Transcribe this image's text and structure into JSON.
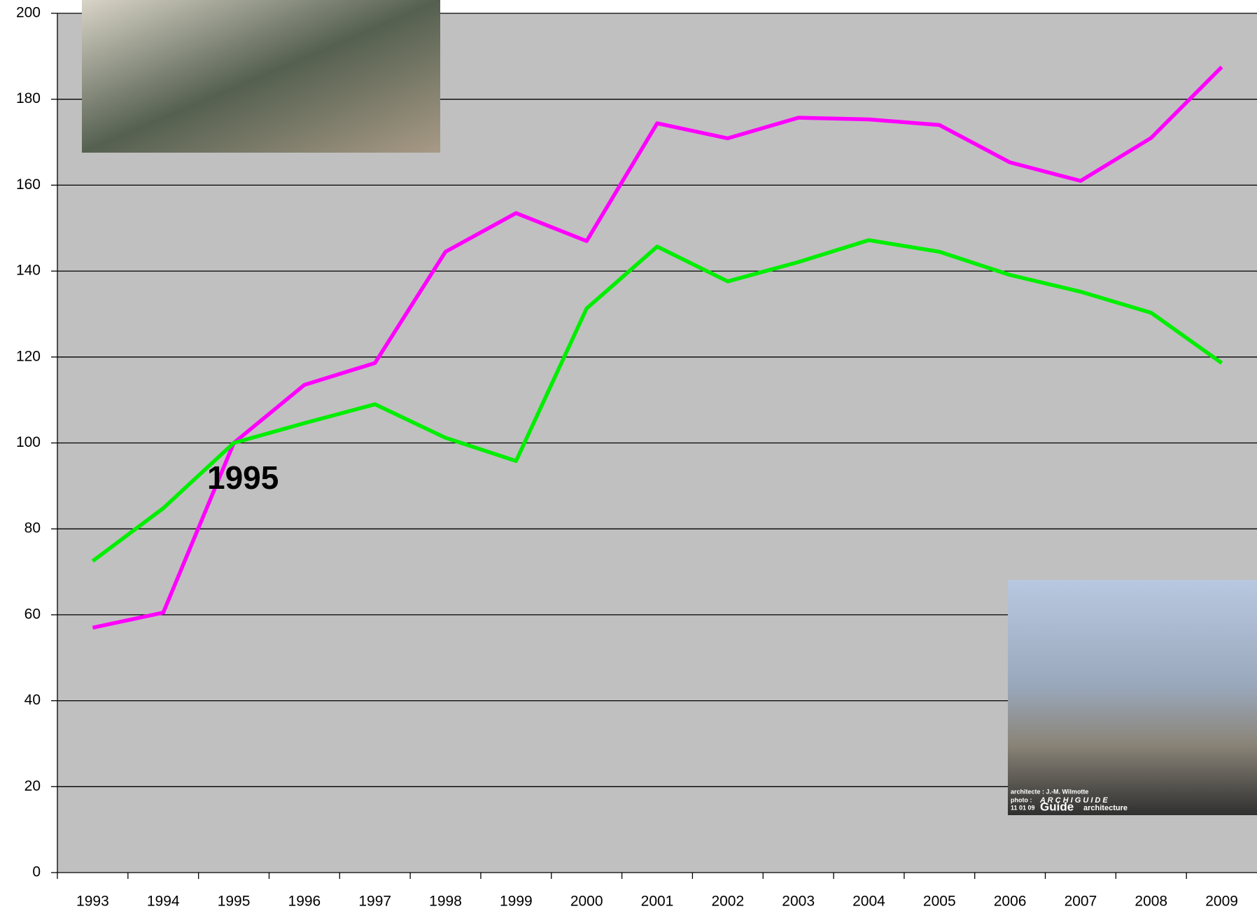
{
  "chart_data": {
    "type": "line",
    "categories": [
      "1993",
      "1994",
      "1995",
      "1996",
      "1997",
      "1998",
      "1999",
      "2000",
      "2001",
      "2002",
      "2003",
      "2004",
      "2005",
      "2006",
      "2007",
      "2008",
      "2009"
    ],
    "series": [
      {
        "color": "#ff00ff",
        "values": [
          57,
          60.5,
          100,
          113.5,
          118.6,
          144.5,
          153.5,
          147,
          174.4,
          170.9,
          175.7,
          175.3,
          174,
          165.3,
          161,
          171,
          187.5
        ]
      },
      {
        "color": "#00ee00",
        "values": [
          72.5,
          84.8,
          100,
          104.6,
          109,
          101.2,
          95.8,
          131.3,
          145.7,
          137.6,
          142.1,
          147.2,
          144.5,
          139.1,
          135.2,
          130.3,
          118.6
        ]
      }
    ],
    "ylim": [
      0,
      200
    ],
    "yticks": [
      0,
      20,
      40,
      60,
      80,
      100,
      120,
      140,
      160,
      180,
      200
    ],
    "grid": true,
    "annotation": "1995",
    "photo_caption": [
      "architecte : J.-M. Wilmotte",
      "photo :",
      "A R C H I G U I D E",
      "11 01 09",
      "Guide",
      "architecture"
    ]
  }
}
